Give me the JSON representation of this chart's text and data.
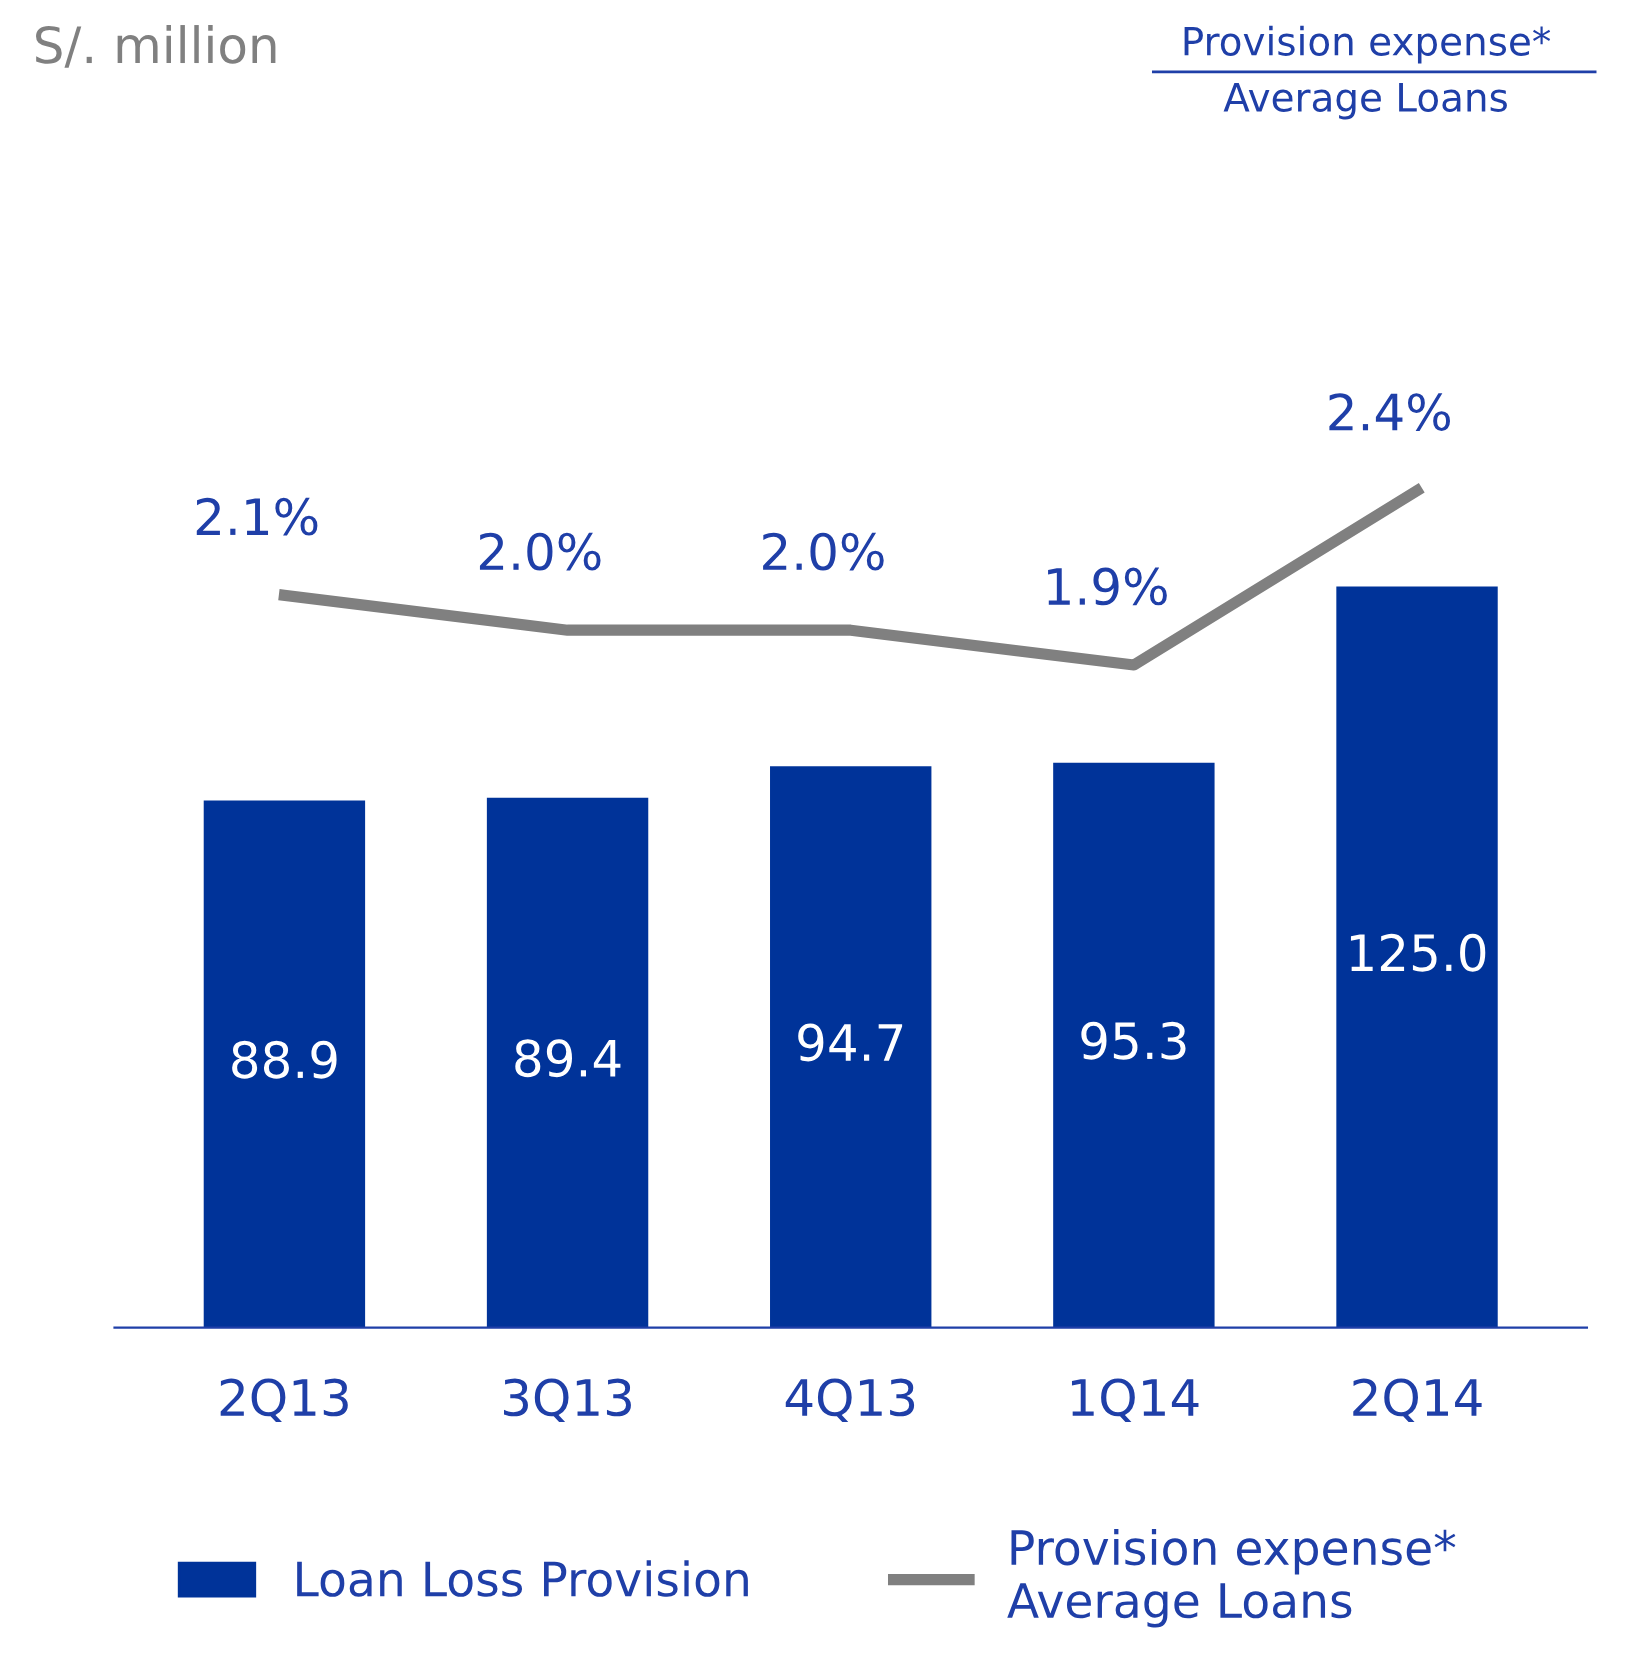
{
  "chart_data": {
    "type": "bar",
    "annotations": [
      "S/. million",
      "Provision expense*\nAverage Loans"
    ],
    "categories": [
      "2Q13",
      "3Q13",
      "4Q13",
      "1Q14",
      "2Q14"
    ],
    "series": [
      {
        "name": "Loan Loss Provision",
        "color": "#003399",
        "values": [
          88.9,
          89.4,
          94.7,
          95.3,
          125.0
        ],
        "value_labels": [
          "88.9",
          "89.4",
          "94.7",
          "95.3",
          "125.0"
        ]
      },
      {
        "name": "Provision expense*\nAverage Loans",
        "type": "line",
        "axis": "y2",
        "color": "#808080",
        "marker": "none",
        "line_style": "solid",
        "values": [
          2.1,
          2.0,
          2.0,
          1.9,
          2.4
        ],
        "value_labels": [
          "2.1%",
          "2.0%",
          "2.0%",
          "1.9%",
          "2.4%"
        ]
      }
    ],
    "tick_labels": "x",
    "grid": false,
    "legend": "bottom"
  }
}
